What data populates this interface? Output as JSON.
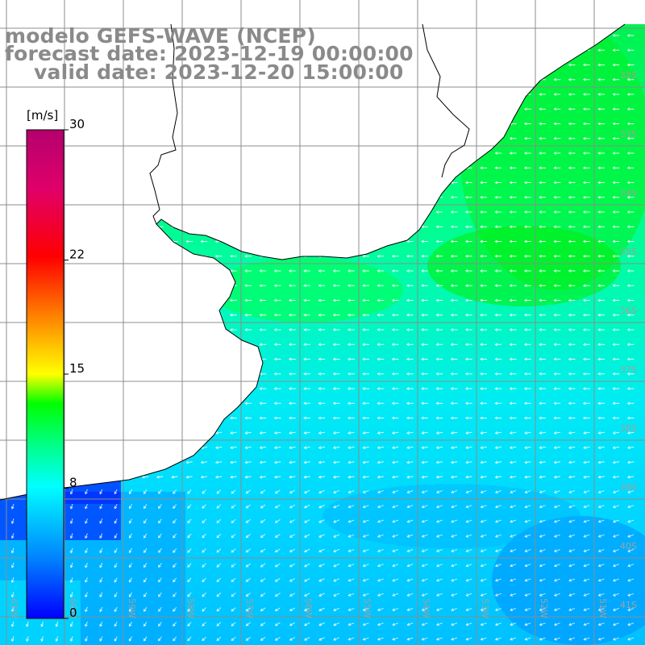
{
  "title": {
    "line1": "modelo GEFS-WAVE (NCEP)",
    "line2": "forecast date: 2023-12-19 00:00:00",
    "line3": "valid date: 2023-12-20 15:00:00"
  },
  "colorbar": {
    "unit": "[m/s]",
    "ticks": [
      {
        "value": 30,
        "label": "30"
      },
      {
        "value": 22,
        "label": "22"
      },
      {
        "value": 15,
        "label": "15"
      },
      {
        "value": 8,
        "label": "8"
      },
      {
        "value": 0,
        "label": "0"
      }
    ],
    "colors": [
      "#0000ff",
      "#0080ff",
      "#00c8ff",
      "#00ffff",
      "#00ff80",
      "#00ff00",
      "#80ff00",
      "#ffff00",
      "#ffa000",
      "#ff5000",
      "#ff0000",
      "#e0006a",
      "#b4006e"
    ]
  },
  "map": {
    "lat_labels": [
      "32S",
      "33S",
      "34S",
      "35S",
      "36S",
      "37S",
      "38S",
      "39S",
      "40S",
      "41S"
    ],
    "lon_labels": [
      "61W",
      "60W",
      "59W",
      "58W",
      "57W",
      "56W",
      "55W",
      "54W",
      "53W",
      "52W",
      "51W"
    ]
  }
}
